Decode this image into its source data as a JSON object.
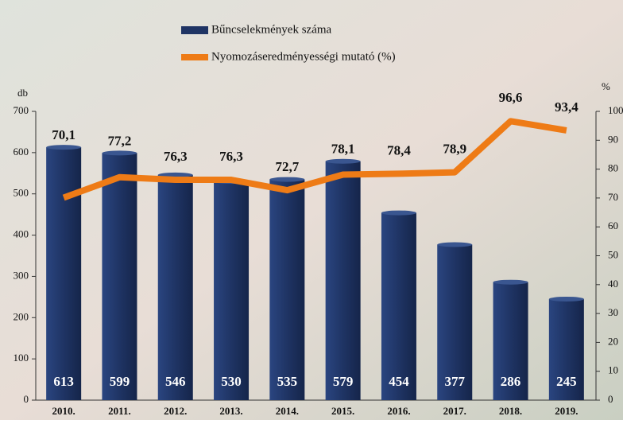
{
  "chart_data": {
    "type": "bar-line",
    "categories": [
      "2010.",
      "2011.",
      "2012.",
      "2013.",
      "2014.",
      "2015.",
      "2016.",
      "2017.",
      "2018.",
      "2019."
    ],
    "y_label": "db",
    "y2_label": "%",
    "ylim": [
      0,
      700
    ],
    "yticks": [
      0,
      100,
      200,
      300,
      400,
      500,
      600,
      700
    ],
    "y2lim": [
      0,
      100
    ],
    "y2ticks": [
      0,
      10,
      20,
      30,
      40,
      50,
      60,
      70,
      80,
      90,
      100
    ],
    "series": [
      {
        "name": "Bűncselekmények száma",
        "type": "bar",
        "color": "#1f3464",
        "values": [
          613,
          599,
          546,
          530,
          535,
          579,
          454,
          377,
          286,
          245
        ]
      },
      {
        "name": "Nyomozáseredményességi mutató (%)",
        "type": "line",
        "axis": "y2",
        "color": "#ee7b16",
        "values": [
          70.1,
          77.2,
          76.3,
          76.3,
          72.7,
          78.1,
          78.4,
          78.9,
          96.6,
          93.4
        ],
        "value_labels": [
          "70,1",
          "77,2",
          "76,3",
          "76,3",
          "72,7",
          "78,1",
          "78,4",
          "78,9",
          "96,6",
          "93,4"
        ]
      }
    ]
  }
}
